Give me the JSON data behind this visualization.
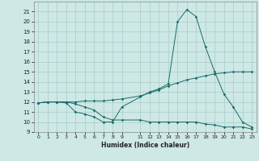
{
  "xlabel": "Humidex (Indice chaleur)",
  "background_color": "#cde8e5",
  "grid_color": "#a8cccb",
  "line_color": "#1a6b6b",
  "x_values": [
    0,
    1,
    2,
    3,
    4,
    5,
    6,
    7,
    8,
    9,
    11,
    12,
    13,
    14,
    15,
    16,
    17,
    18,
    19,
    20,
    21,
    22,
    23
  ],
  "line1": [
    11.9,
    12.0,
    12.0,
    11.9,
    11.0,
    10.8,
    10.5,
    10.0,
    10.0,
    11.5,
    12.5,
    13.0,
    13.3,
    13.8,
    20.0,
    21.2,
    20.5,
    17.5,
    15.0,
    12.8,
    11.5,
    10.0,
    9.5
  ],
  "line2": [
    11.9,
    12.0,
    12.0,
    12.0,
    12.0,
    12.1,
    12.1,
    12.1,
    12.2,
    12.3,
    12.6,
    12.9,
    13.2,
    13.6,
    13.9,
    14.2,
    14.4,
    14.6,
    14.8,
    14.9,
    15.0,
    15.0,
    15.0
  ],
  "line3": [
    11.9,
    12.0,
    12.0,
    12.0,
    11.8,
    11.5,
    11.2,
    10.5,
    10.2,
    10.2,
    10.2,
    10.0,
    10.0,
    10.0,
    10.0,
    10.0,
    10.0,
    9.8,
    9.7,
    9.5,
    9.5,
    9.5,
    9.3
  ],
  "ylim": [
    9,
    22
  ],
  "xlim": [
    -0.5,
    23.5
  ],
  "yticks": [
    9,
    10,
    11,
    12,
    13,
    14,
    15,
    16,
    17,
    18,
    19,
    20,
    21
  ],
  "xtick_positions": [
    0,
    1,
    2,
    3,
    4,
    5,
    6,
    7,
    8,
    9,
    11,
    12,
    13,
    14,
    15,
    16,
    17,
    18,
    19,
    20,
    21,
    22,
    23
  ],
  "xtick_labels": [
    "0",
    "1",
    "2",
    "3",
    "4",
    "5",
    "6",
    "7",
    "8",
    "9",
    "11",
    "12",
    "13",
    "14",
    "15",
    "16",
    "17",
    "18",
    "19",
    "20",
    "21",
    "22",
    "23"
  ]
}
